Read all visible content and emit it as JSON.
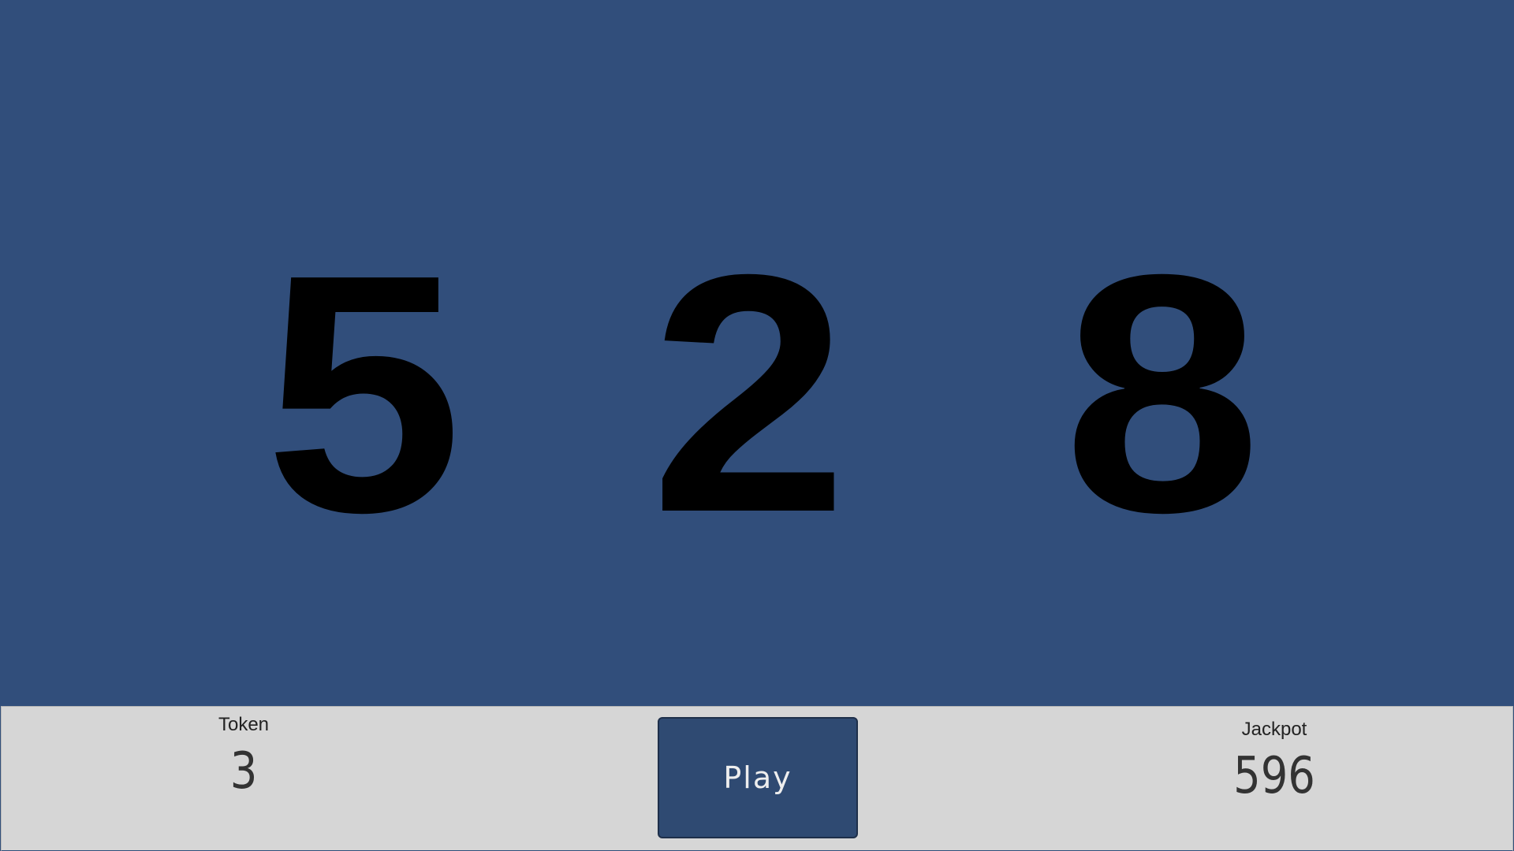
{
  "reels": [
    {
      "value": "5"
    },
    {
      "value": "2"
    },
    {
      "value": "8"
    }
  ],
  "token": {
    "label": "Token",
    "value": "3"
  },
  "play": {
    "label": "Play"
  },
  "jackpot": {
    "label": "Jackpot",
    "value": "596"
  },
  "colors": {
    "background": "#314e7b",
    "bar": "#d6d6d6",
    "button": "#2f4a72"
  }
}
